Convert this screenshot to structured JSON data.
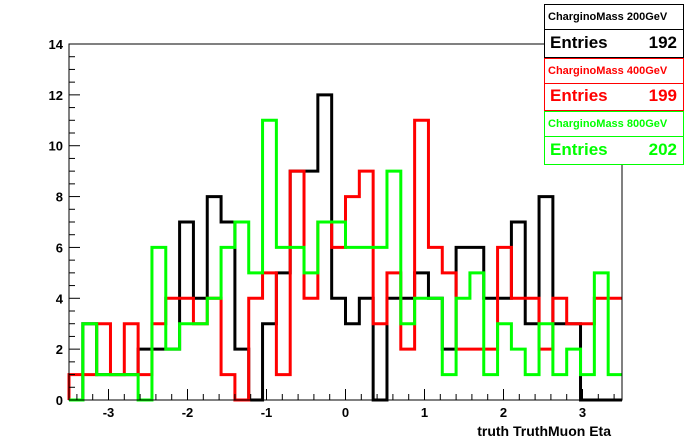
{
  "chart_data": {
    "type": "histogram-step",
    "xlabel": "truth TruthMuon Eta",
    "ylabel": "",
    "xlim": [
      -3.5,
      3.5
    ],
    "ylim": [
      0,
      14
    ],
    "xticks": [
      "-3",
      "-2",
      "-1",
      "0",
      "1",
      "2",
      "3"
    ],
    "yticks": [
      "0",
      "2",
      "4",
      "6",
      "8",
      "10",
      "12",
      "14"
    ],
    "bin_edges": [
      -3.5,
      -3.325,
      -3.15,
      -2.975,
      -2.8,
      -2.625,
      -2.45,
      -2.275,
      -2.1,
      -1.925,
      -1.75,
      -1.575,
      -1.4,
      -1.225,
      -1.05,
      -0.875,
      -0.7,
      -0.525,
      -0.35,
      -0.175,
      0.0,
      0.175,
      0.35,
      0.525,
      0.7,
      0.875,
      1.05,
      1.225,
      1.4,
      1.575,
      1.75,
      1.925,
      2.1,
      2.275,
      2.45,
      2.625,
      2.8,
      2.975,
      3.15,
      3.325,
      3.5
    ],
    "series": [
      {
        "name": "CharginoMass 200GeV",
        "color": "#000000",
        "values": [
          0,
          3,
          1,
          1,
          1,
          2,
          2,
          2,
          7,
          4,
          8,
          7,
          2,
          0,
          3,
          5,
          9,
          9,
          12,
          4,
          3,
          4,
          0,
          4,
          4,
          5,
          4,
          2,
          6,
          6,
          4,
          4,
          7,
          3,
          8,
          3,
          3,
          0,
          0,
          0
        ]
      },
      {
        "name": "CharginoMass 400GeV",
        "color": "#ff0000",
        "values": [
          1,
          1,
          3,
          1,
          3,
          1,
          3,
          4,
          4,
          3,
          4,
          1,
          0,
          4,
          5,
          1,
          9,
          4,
          7,
          6,
          8,
          9,
          3,
          5,
          2,
          11,
          6,
          5,
          2,
          2,
          2,
          6,
          4,
          4,
          2,
          4,
          3,
          3,
          4,
          4
        ]
      },
      {
        "name": "CharginoMass 800GeV",
        "color": "#00ff00",
        "values": [
          0,
          3,
          1,
          1,
          1,
          0,
          6,
          2,
          3,
          3,
          4,
          6,
          7,
          5,
          11,
          6,
          6,
          5,
          7,
          7,
          6,
          6,
          6,
          9,
          3,
          4,
          4,
          1,
          4,
          5,
          1,
          3,
          2,
          1,
          3,
          1,
          2,
          1,
          5,
          1
        ]
      }
    ],
    "legend": "top-right",
    "grid": false
  },
  "stats": [
    {
      "title": "CharginoMass 200GeV",
      "key": "Entries",
      "value": "192",
      "color": "#000000"
    },
    {
      "title": "CharginoMass 400GeV",
      "key": "Entries",
      "value": "199",
      "color": "#ff0000"
    },
    {
      "title": "CharginoMass 800GeV",
      "key": "Entries",
      "value": "202",
      "color": "#00ff00"
    }
  ]
}
